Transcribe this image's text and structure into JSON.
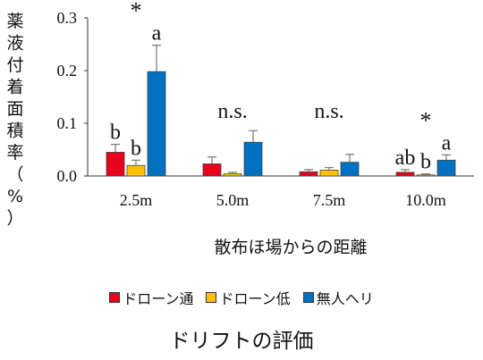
{
  "chart_data": {
    "type": "bar",
    "ylabel": "薬液付着面積率（%）",
    "xlabel": "散布ほ場からの距離",
    "title": "ドリフトの評価",
    "ylim": [
      0,
      0.3
    ],
    "yticks": [
      "0.0",
      "0.1",
      "0.2",
      "0.3"
    ],
    "categories": [
      "2.5m",
      "5.0m",
      "7.5m",
      "10.0m"
    ],
    "series": [
      {
        "name": "ドローン通",
        "color": "#e8001c",
        "values": [
          0.045,
          0.023,
          0.008,
          0.007
        ],
        "errors": [
          0.015,
          0.013,
          0.004,
          0.005
        ],
        "letters": [
          "b",
          "",
          "",
          "ab"
        ]
      },
      {
        "name": "ドローン低",
        "color": "#ffc000",
        "values": [
          0.02,
          0.004,
          0.011,
          0.002
        ],
        "errors": [
          0.01,
          0.003,
          0.005,
          0.002
        ],
        "letters": [
          "b",
          "",
          "",
          "b"
        ]
      },
      {
        "name": "無人ヘリ",
        "color": "#0070c0",
        "values": [
          0.198,
          0.064,
          0.026,
          0.03
        ],
        "errors": [
          0.05,
          0.022,
          0.015,
          0.01
        ],
        "letters": [
          "a",
          "",
          "",
          "a"
        ]
      }
    ],
    "group_annotations": [
      "*",
      "n.s.",
      "n.s.",
      "*"
    ]
  }
}
